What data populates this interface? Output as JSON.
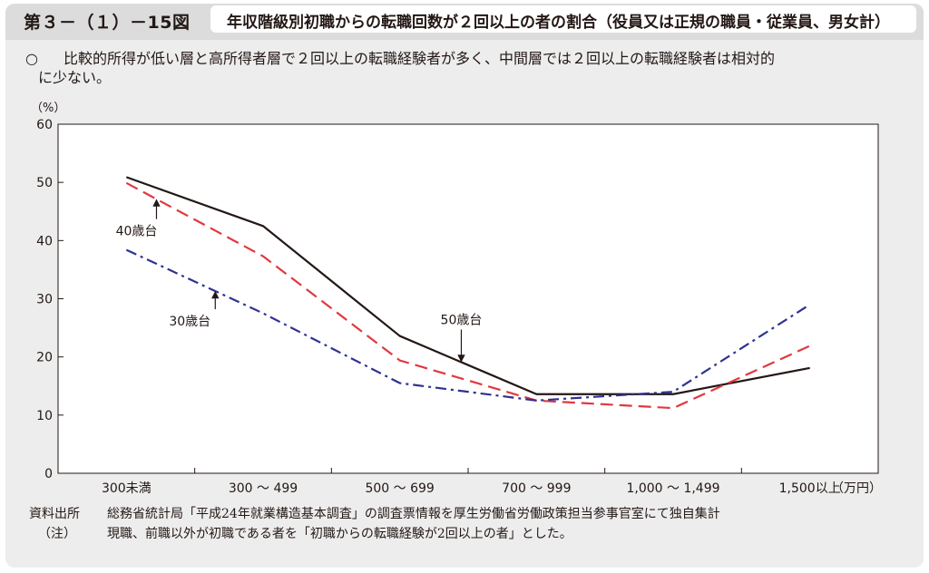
{
  "header": {
    "figure_number": "第３－（１）－15図",
    "title": "年収階級別初職からの転職回数が２回以上の者の割合（役員又は正規の職員・従業員、男女計）"
  },
  "summary": {
    "bullet": "○",
    "line1": "比較的所得が低い層と高所得者層で２回以上の転職経験者が多く、中間層では２回以上の転職経験者は相対的",
    "line2": "に少ない。"
  },
  "chart_data": {
    "type": "line",
    "y_unit_label": "（%）",
    "x_unit_label": "（万円）",
    "categories": [
      "300未満",
      "300 ～ 499",
      "500 ～ 699",
      "700 ～ 999",
      "1,000 ～ 1,499",
      "1,500以上"
    ],
    "ylim": [
      0,
      60
    ],
    "yticks": [
      0,
      10,
      20,
      30,
      40,
      50,
      60
    ],
    "grid": false,
    "series": [
      {
        "name": "50歳台",
        "values": [
          50.9,
          42.5,
          23.6,
          13.6,
          13.6,
          18.1
        ],
        "color": "#231815",
        "style": "solid"
      },
      {
        "name": "40歳台",
        "values": [
          49.9,
          37.3,
          19.4,
          12.5,
          11.2,
          21.9
        ],
        "color": "#e0393e",
        "style": "dashed"
      },
      {
        "name": "30歳台",
        "values": [
          38.4,
          27.5,
          15.5,
          12.5,
          14.0,
          29.0
        ],
        "color": "#2e3192",
        "style": "dashdot"
      }
    ],
    "annotations": [
      "40歳台",
      "30歳台",
      "50歳台"
    ]
  },
  "notes": {
    "source_label": "資料出所",
    "source_text": "総務省統計局「平成24年就業構造基本調査」の調査票情報を厚生労働省労働政策担当参事官室にて独自集計",
    "note_label": "（注）",
    "note_text": "現職、前職以外が初職である者を「初職からの転職経験が2回以上の者」とした。"
  }
}
